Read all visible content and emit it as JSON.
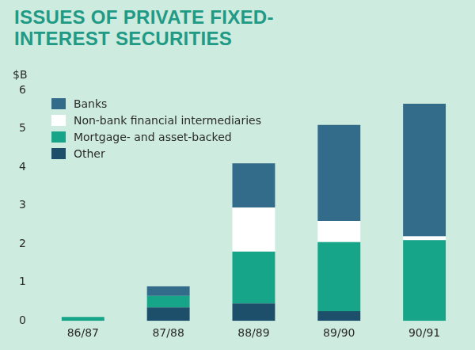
{
  "chart_data": {
    "type": "bar",
    "title": "ISSUES OF PRIVATE FIXED-INTEREST SECURITIES",
    "ylabel": "$B",
    "categories": [
      "86/87",
      "87/88",
      "88/89",
      "89/90",
      "90/91"
    ],
    "series": [
      {
        "name": "Banks",
        "color": "#336b8a",
        "values": [
          0,
          0.25,
          1.15,
          2.5,
          3.45
        ]
      },
      {
        "name": "Non-bank financial intermediaries",
        "color": "#ffffff",
        "values": [
          0,
          0,
          1.15,
          0.55,
          0.1
        ]
      },
      {
        "name": "Mortgage- and asset-backed",
        "color": "#17a589",
        "values": [
          0.1,
          0.3,
          1.35,
          1.8,
          2.1
        ]
      },
      {
        "name": "Other",
        "color": "#1e4f6a",
        "values": [
          0,
          0.35,
          0.45,
          0.25,
          0
        ]
      }
    ],
    "ylim": [
      0,
      6
    ],
    "yticks": [
      0,
      1,
      2,
      3,
      4,
      5,
      6
    ],
    "stacked": true,
    "grid": false,
    "legend": "top-left"
  }
}
